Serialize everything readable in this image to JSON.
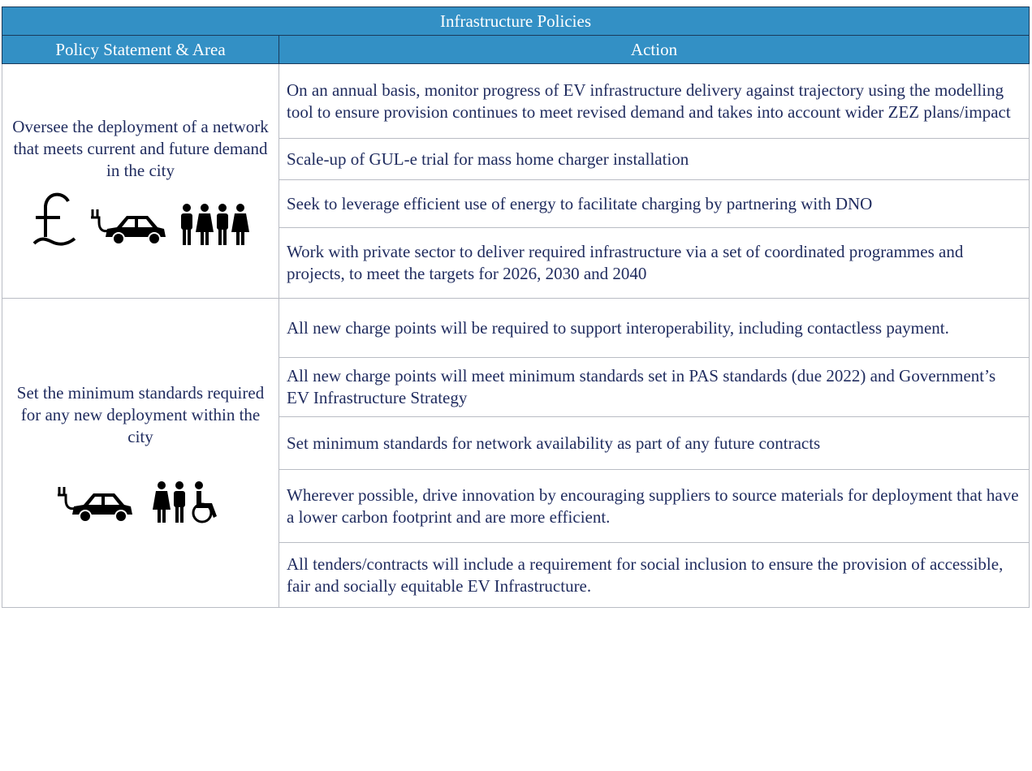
{
  "table": {
    "title": "Infrastructure Policies",
    "header": [
      "Policy Statement & Area",
      "Action"
    ],
    "groups": [
      {
        "policy": "Oversee the deployment of a network that meets current and future demand in the city",
        "actions": [
          "On an annual basis, monitor progress of EV infrastructure delivery against trajectory using the modelling tool to ensure provision continues to meet revised demand and takes into account wider ZEZ plans/impact",
          "Scale-up of GUL-e trial for mass home charger installation",
          "Seek to leverage efficient use of energy to facilitate charging by partnering with DNO",
          "Work with private sector to deliver required infrastructure via a set of coordinated programmes and projects, to meet the targets for 2026, 2030 and 2040"
        ]
      },
      {
        "policy": "Set the minimum standards required for any new deployment within the city",
        "actions": [
          "All new charge points will be required to support interoperability, including contactless payment.",
          "All new charge points will meet minimum standards set in PAS standards (due 2022) and Government’s EV Infrastructure Strategy",
          "Set minimum standards for network availability as part of any future contracts",
          "Wherever possible, drive innovation by encouraging suppliers to source materials for deployment that have a lower carbon footprint and are more efficient.",
          "All tenders/contracts will include a requirement for social inclusion to ensure the provision of accessible, fair and socially equitable EV Infrastructure."
        ]
      }
    ]
  }
}
